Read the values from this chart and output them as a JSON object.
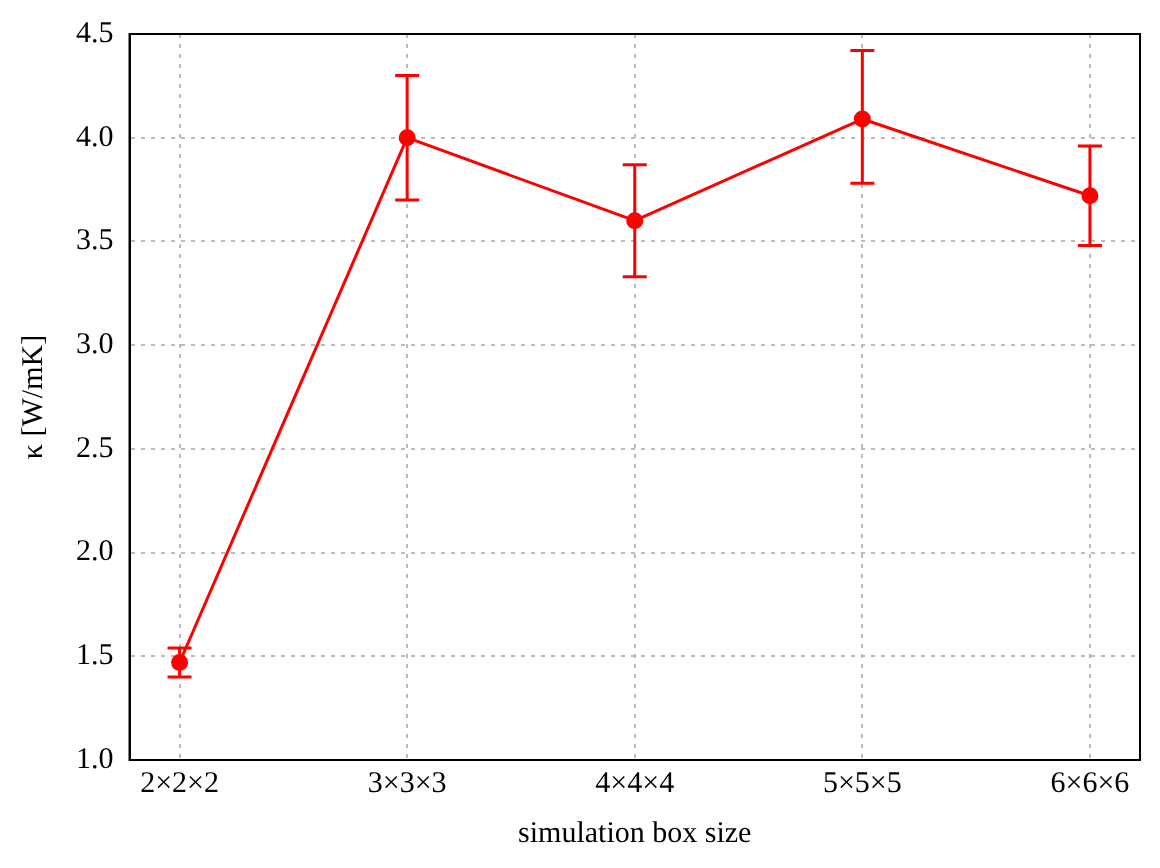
{
  "chart_data": {
    "type": "line",
    "xlabel": "simulation box size",
    "ylabel": "κ [W/mK]",
    "categories": [
      "2×2×2",
      "3×3×3",
      "4×4×4",
      "5×5×5",
      "6×6×6"
    ],
    "series": [
      {
        "color": "#ff0000",
        "values": [
          1.47,
          4.0,
          3.6,
          4.09,
          3.72
        ],
        "errors": [
          [
            1.4,
            1.54
          ],
          [
            3.7,
            4.3
          ],
          [
            3.33,
            3.87
          ],
          [
            3.78,
            4.42
          ],
          [
            3.48,
            3.96
          ]
        ]
      }
    ],
    "ylim": [
      1.0,
      4.5
    ],
    "yticks": [
      {
        "value": 1,
        "label": "1.0"
      },
      {
        "value": 1.5,
        "label": "1.5"
      },
      {
        "value": 2,
        "label": "2.0"
      },
      {
        "value": 2.5,
        "label": "2.5"
      },
      {
        "value": 3,
        "label": "3.0"
      },
      {
        "value": 3.5,
        "label": "3.5"
      },
      {
        "value": 4,
        "label": "4.0"
      },
      {
        "value": 4.5,
        "label": "4.5"
      }
    ],
    "grid": true,
    "legend": false,
    "marker": "circle",
    "line_style": "solid"
  }
}
